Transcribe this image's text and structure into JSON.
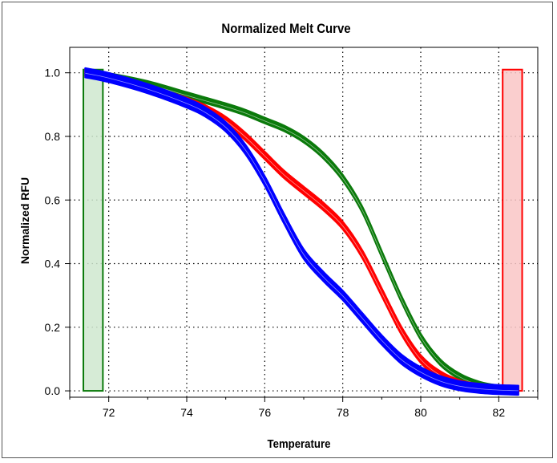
{
  "chart_data": {
    "type": "line",
    "title": "Normalized Melt Curve",
    "xlabel": "Temperature",
    "ylabel": "Normalized RFU",
    "xlim": [
      71.0,
      83.0
    ],
    "ylim": [
      -0.02,
      1.08
    ],
    "x_ticks": [
      72,
      74,
      76,
      78,
      80,
      82
    ],
    "y_ticks": [
      0.0,
      0.2,
      0.4,
      0.6,
      0.8,
      1.0
    ],
    "x_tick_labels": [
      "72",
      "74",
      "76",
      "78",
      "80",
      "82"
    ],
    "y_tick_labels": [
      "0.0",
      "0.2",
      "0.4",
      "0.6",
      "0.8",
      "1.0"
    ],
    "grid": true,
    "colors": {
      "green": "#0b7a0b",
      "red": "#ff0000",
      "blue": "#0000ff"
    },
    "regions": [
      {
        "x": [
          71.35,
          71.85
        ],
        "y": [
          0.0,
          1.01
        ],
        "fill": "#cfe8cf",
        "stroke": "#0b7a0b"
      },
      {
        "x": [
          82.1,
          82.6
        ],
        "y": [
          0.0,
          1.01
        ],
        "fill": "#f9c6c6",
        "stroke": "#ff0000"
      }
    ],
    "series": [
      {
        "color": "#0b7a0b",
        "replicates": 4,
        "x": [
          71.4,
          72.0,
          73.0,
          74.0,
          75.0,
          75.5,
          76.0,
          76.5,
          77.0,
          77.5,
          78.0,
          78.5,
          79.0,
          79.5,
          80.0,
          80.5,
          81.0,
          81.5,
          82.0,
          82.5
        ],
        "y": [
          1.0,
          0.99,
          0.965,
          0.93,
          0.895,
          0.875,
          0.85,
          0.825,
          0.79,
          0.74,
          0.67,
          0.57,
          0.43,
          0.29,
          0.17,
          0.09,
          0.045,
          0.02,
          0.008,
          0.004
        ]
      },
      {
        "color": "#ff0000",
        "replicates": 5,
        "x": [
          71.4,
          72.0,
          73.0,
          74.0,
          74.5,
          75.0,
          75.5,
          76.0,
          76.5,
          77.0,
          77.5,
          78.0,
          78.5,
          79.0,
          79.5,
          80.0,
          80.5,
          81.0,
          81.5,
          82.0,
          82.5
        ],
        "y": [
          1.0,
          0.985,
          0.95,
          0.91,
          0.885,
          0.85,
          0.8,
          0.74,
          0.68,
          0.63,
          0.58,
          0.52,
          0.43,
          0.31,
          0.19,
          0.1,
          0.05,
          0.022,
          0.01,
          0.005,
          0.003
        ]
      },
      {
        "color": "#0000ff",
        "replicates": 6,
        "x": [
          71.4,
          72.0,
          73.0,
          74.0,
          74.5,
          75.0,
          75.5,
          76.0,
          76.5,
          77.0,
          77.5,
          78.0,
          78.5,
          79.0,
          79.5,
          80.0,
          80.5,
          81.0,
          81.5,
          82.0,
          82.5
        ],
        "y": [
          1.0,
          0.985,
          0.95,
          0.905,
          0.875,
          0.83,
          0.76,
          0.66,
          0.54,
          0.43,
          0.36,
          0.3,
          0.23,
          0.16,
          0.1,
          0.06,
          0.032,
          0.016,
          0.008,
          0.004,
          0.002
        ]
      }
    ]
  }
}
